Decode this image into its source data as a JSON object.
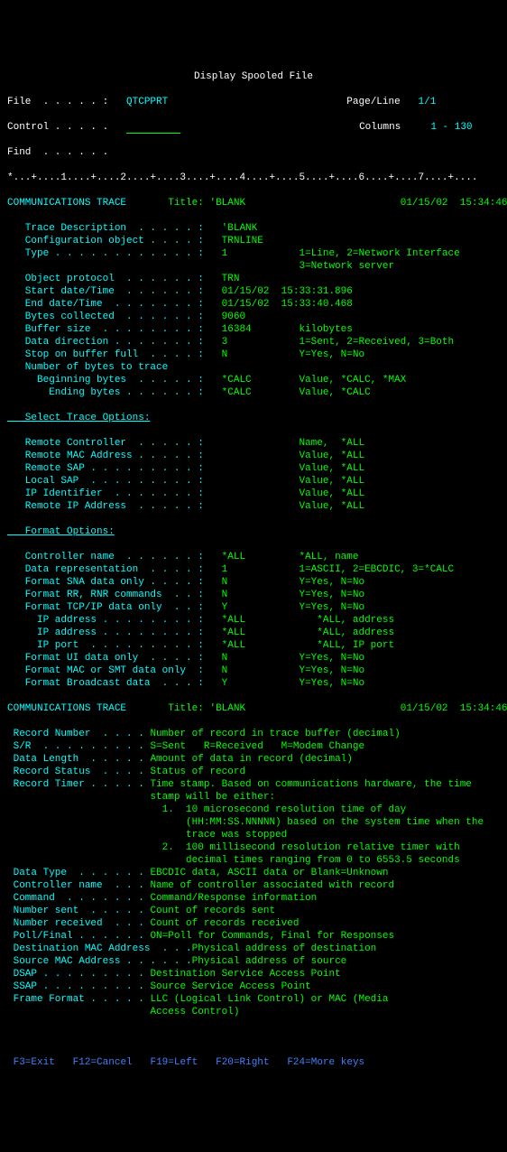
{
  "colors": {
    "background": "#000000",
    "green": "#00ff00",
    "cyan": "#00ffff",
    "white": "#ffffff",
    "blue": "#4080ff"
  },
  "font": {
    "family": "Courier New, monospace",
    "size": 11,
    "lineHeight": 14
  },
  "header": {
    "title": "Display Spooled File",
    "fileLabel": "File  . . . . . :",
    "fileValue": "QTCPPRT",
    "pageLineLabel": "Page/Line",
    "pageLineValue": "1/1",
    "controlLabel": "Control . . . . .",
    "controlValue": "",
    "columnsLabel": "Columns",
    "columnsValue": "1 - 130",
    "findLabel": "Find  . . . . . .",
    "findValue": "",
    "ruler": "*...+....1....+....2....+....3....+....4....+....5....+....6....+....7....+...."
  },
  "trace1": {
    "title": "COMMUNICATIONS TRACE",
    "titleLabel": "Title:",
    "titleValue": "'BLANK",
    "datetime": "01/15/02  15:34:46"
  },
  "traceFields": [
    {
      "label": "   Trace Description  . . . . . :",
      "value": "'BLANK"
    },
    {
      "label": "   Configuration object . . . . :",
      "value": "TRNLINE"
    },
    {
      "label": "   Type . . . . . . . . . . . . :",
      "value": "1",
      "suffix": "1=Line, 2=Network Interface"
    },
    {
      "label": "",
      "value": "",
      "suffix": "3=Network server"
    },
    {
      "label": "   Object protocol  . . . . . . :",
      "value": "TRN"
    },
    {
      "label": "   Start date/Time  . . . . . . :",
      "value": "01/15/02  15:33:31.896"
    },
    {
      "label": "   End date/Time  . . . . . . . :",
      "value": "01/15/02  15:33:40.468"
    },
    {
      "label": "   Bytes collected  . . . . . . :",
      "value": "9060"
    },
    {
      "label": "   Buffer size  . . . . . . . . :",
      "value": "16384",
      "suffix": "kilobytes"
    },
    {
      "label": "   Data direction . . . . . . . :",
      "value": "3",
      "suffix": "1=Sent, 2=Received, 3=Both"
    },
    {
      "label": "   Stop on buffer full  . . . . :",
      "value": "N",
      "suffix": "Y=Yes, N=No"
    },
    {
      "label": "   Number of bytes to trace",
      "value": ""
    },
    {
      "label": "     Beginning bytes  . . . . . :",
      "value": "*CALC",
      "suffix": "Value, *CALC, *MAX"
    },
    {
      "label": "       Ending bytes . . . . . . :",
      "value": "*CALC",
      "suffix": "Value, *CALC"
    }
  ],
  "selectTraceHeader": "   Select Trace Options:",
  "selectTraceFields": [
    {
      "label": "   Remote Controller  . . . . . :",
      "value": "",
      "suffix": "Name,  *ALL"
    },
    {
      "label": "   Remote MAC Address . . . . . :",
      "value": "",
      "suffix": "Value, *ALL"
    },
    {
      "label": "   Remote SAP . . . . . . . . . :",
      "value": "",
      "suffix": "Value, *ALL"
    },
    {
      "label": "   Local SAP  . . . . . . . . . :",
      "value": "",
      "suffix": "Value, *ALL"
    },
    {
      "label": "   IP Identifier  . . . . . . . :",
      "value": "",
      "suffix": "Value, *ALL"
    },
    {
      "label": "   Remote IP Address  . . . . . :",
      "value": "",
      "suffix": "Value, *ALL"
    }
  ],
  "formatHeader": "   Format Options:",
  "formatFields": [
    {
      "label": "   Controller name  . . . . . . :",
      "value": "*ALL",
      "suffix": "*ALL, name"
    },
    {
      "label": "   Data representation  . . . . :",
      "value": "1",
      "suffix": "1=ASCII, 2=EBCDIC, 3=*CALC"
    },
    {
      "label": "   Format SNA data only . . . . :",
      "value": "N",
      "suffix": "Y=Yes, N=No"
    },
    {
      "label": "   Format RR, RNR commands  . . :",
      "value": "N",
      "suffix": "Y=Yes, N=No"
    },
    {
      "label": "   Format TCP/IP data only  . . :",
      "value": "Y",
      "suffix": "Y=Yes, N=No"
    },
    {
      "label": "     IP address . . . . . . . . :",
      "value": "*ALL",
      "suffix": "   *ALL, address"
    },
    {
      "label": "     IP address . . . . . . . . :",
      "value": "*ALL",
      "suffix": "   *ALL, address"
    },
    {
      "label": "     IP port  . . . . . . . . . :",
      "value": "*ALL",
      "suffix": "   *ALL, IP port"
    },
    {
      "label": "   Format UI data only  . . . . :",
      "value": "N",
      "suffix": "Y=Yes, N=No"
    },
    {
      "label": "   Format MAC or SMT data only  :",
      "value": "N",
      "suffix": "Y=Yes, N=No"
    },
    {
      "label": "   Format Broadcast data  . . . :",
      "value": "Y",
      "suffix": "Y=Yes, N=No"
    }
  ],
  "trace2": {
    "title": "COMMUNICATIONS TRACE",
    "titleLabel": "Title:",
    "titleValue": "'BLANK",
    "datetime": "01/15/02  15:34:46"
  },
  "recordFields": [
    {
      "label": " Record Number  . . . .",
      "value": "Number of record in trace buffer (decimal)"
    },
    {
      "label": " S/R  . . . . . . . . .",
      "value": "S=Sent   R=Received   M=Modem Change"
    },
    {
      "label": " Data Length  . . . . .",
      "value": "Amount of data in record (decimal)"
    },
    {
      "label": " Record Status  . . . .",
      "value": "Status of record"
    },
    {
      "label": " Record Timer . . . . .",
      "value": "Time stamp. Based on communications hardware, the time"
    },
    {
      "label": "",
      "value": "                        stamp will be either:"
    },
    {
      "label": "",
      "value": "                          1.  10 microsecond resolution time of day"
    },
    {
      "label": "",
      "value": "                              (HH:MM:SS.NNNNN) based on the system time when the"
    },
    {
      "label": "",
      "value": "                              trace was stopped"
    },
    {
      "label": "",
      "value": "                          2.  100 millisecond resolution relative timer with"
    },
    {
      "label": "",
      "value": "                              decimal times ranging from 0 to 6553.5 seconds"
    },
    {
      "label": " Data Type  . . . . . .",
      "value": "EBCDIC data, ASCII data or Blank=Unknown"
    },
    {
      "label": " Controller name  . . .",
      "value": "Name of controller associated with record"
    },
    {
      "label": " Command  . . . . . . .",
      "value": "Command/Response information"
    },
    {
      "label": " Number sent  . . . . .",
      "value": "Count of records sent"
    },
    {
      "label": " Number received  . . .",
      "value": "Count of records received"
    },
    {
      "label": " Poll/Final . . . . . .",
      "value": "ON=Poll for Commands, Final for Responses"
    },
    {
      "label": " Destination MAC Address  . . .",
      "value": "Physical address of destination"
    },
    {
      "label": " Source MAC Address . . . . . .",
      "value": "Physical address of source"
    },
    {
      "label": " DSAP . . . . . . . . .",
      "value": "Destination Service Access Point"
    },
    {
      "label": " SSAP . . . . . . . . .",
      "value": "Source Service Access Point"
    },
    {
      "label": " Frame Format . . . . .",
      "value": "LLC (Logical Link Control) or MAC (Media"
    },
    {
      "label": "",
      "value": "                        Access Control)"
    }
  ],
  "footer": {
    "keys": [
      {
        "key": "F3=Exit"
      },
      {
        "key": "F12=Cancel"
      },
      {
        "key": "F19=Left"
      },
      {
        "key": "F20=Right"
      },
      {
        "key": "F24=More keys"
      }
    ]
  }
}
